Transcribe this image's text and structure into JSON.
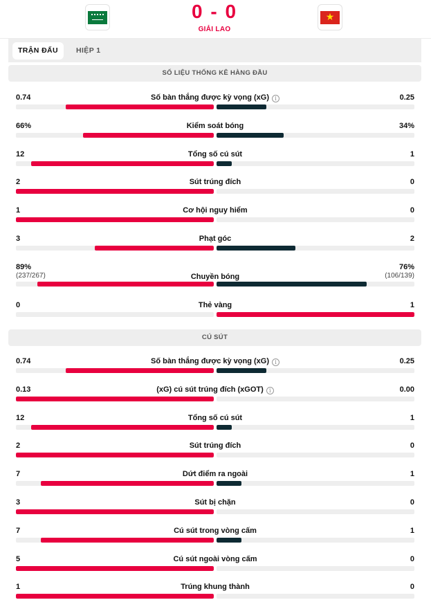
{
  "match": {
    "home_flag": "saudi-arabia-flag-icon",
    "away_flag": "vietnam-flag-icon",
    "score": "0 - 0",
    "status": "GIẢI LAO"
  },
  "tabs": [
    {
      "label": "TRẬN ĐẤU",
      "active": true
    },
    {
      "label": "HIỆP 1",
      "active": false
    }
  ],
  "colors": {
    "home": "#e8003f",
    "away": "#0e2a33",
    "track": "#eeeeee"
  },
  "sections": [
    {
      "title": "SỐ LIỆU THỐNG KÊ HÀNG ĐẦU",
      "stats": [
        {
          "label": "Số bàn thắng được kỳ vọng (xG)",
          "info": true,
          "home": "0.74",
          "away": "0.25",
          "home_val": 0.74,
          "away_val": 0.25,
          "away_wins": false
        },
        {
          "label": "Kiểm soát bóng",
          "info": false,
          "home": "66%",
          "away": "34%",
          "home_val": 66,
          "away_val": 34,
          "away_wins": false
        },
        {
          "label": "Tổng số cú sút",
          "info": false,
          "home": "12",
          "away": "1",
          "home_val": 12,
          "away_val": 1,
          "away_wins": false
        },
        {
          "label": "Sút trúng đích",
          "info": false,
          "home": "2",
          "away": "0",
          "home_val": 2,
          "away_val": 0,
          "away_wins": false
        },
        {
          "label": "Cơ hội nguy hiểm",
          "info": false,
          "home": "1",
          "away": "0",
          "home_val": 1,
          "away_val": 0,
          "away_wins": false
        },
        {
          "label": "Phạt góc",
          "info": false,
          "home": "3",
          "away": "2",
          "home_val": 3,
          "away_val": 2,
          "away_wins": false
        },
        {
          "label": "Chuyền bóng",
          "info": false,
          "home": "89%",
          "away": "76%",
          "home_sub": "(237/267)",
          "away_sub": "(106/139)",
          "home_val": 89,
          "away_val": 76,
          "away_wins": false
        },
        {
          "label": "Thẻ vàng",
          "info": false,
          "home": "0",
          "away": "1",
          "home_val": 0,
          "away_val": 1,
          "away_wins": true
        }
      ]
    },
    {
      "title": "CÚ SÚT",
      "stats": [
        {
          "label": "Số bàn thắng được kỳ vọng (xG)",
          "info": true,
          "home": "0.74",
          "away": "0.25",
          "home_val": 0.74,
          "away_val": 0.25,
          "away_wins": false
        },
        {
          "label": "(xG) cú sút trúng đích (xGOT)",
          "info": true,
          "home": "0.13",
          "away": "0.00",
          "home_val": 0.13,
          "away_val": 0,
          "away_wins": false
        },
        {
          "label": "Tổng số cú sút",
          "info": false,
          "home": "12",
          "away": "1",
          "home_val": 12,
          "away_val": 1,
          "away_wins": false
        },
        {
          "label": "Sút trúng đích",
          "info": false,
          "home": "2",
          "away": "0",
          "home_val": 2,
          "away_val": 0,
          "away_wins": false
        },
        {
          "label": "Dứt điểm ra ngoài",
          "info": false,
          "home": "7",
          "away": "1",
          "home_val": 7,
          "away_val": 1,
          "away_wins": false
        },
        {
          "label": "Sút bị chặn",
          "info": false,
          "home": "3",
          "away": "0",
          "home_val": 3,
          "away_val": 0,
          "away_wins": false
        },
        {
          "label": "Cú sút trong vòng cấm",
          "info": false,
          "home": "7",
          "away": "1",
          "home_val": 7,
          "away_val": 1,
          "away_wins": false
        },
        {
          "label": "Cú sút ngoài vòng cấm",
          "info": false,
          "home": "5",
          "away": "0",
          "home_val": 5,
          "away_val": 0,
          "away_wins": false
        },
        {
          "label": "Trúng khung thành",
          "info": false,
          "home": "1",
          "away": "0",
          "home_val": 1,
          "away_val": 0,
          "away_wins": false
        }
      ]
    }
  ]
}
